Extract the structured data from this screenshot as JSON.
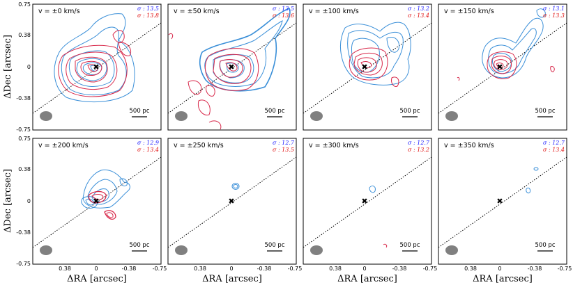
{
  "chart_data": {
    "type": "contour",
    "xlabel": "ΔRA [arcsec]",
    "ylabel": "ΔDec [arcsec]",
    "xlim": [
      0.75,
      -0.75
    ],
    "ylim": [
      -0.75,
      0.75
    ],
    "x_ticks": [
      "0.38",
      "0",
      "-0.38",
      "-0.75"
    ],
    "y_ticks": [
      "0.75",
      "0.38",
      "0",
      "-0.38",
      "-0.75"
    ],
    "scale_bar_label": "500 pc",
    "colors": {
      "blue": "#3a8fd8",
      "red": "#d8284a",
      "sigma_blue": "#1a1aff",
      "sigma_red": "#e01010"
    },
    "panels": [
      {
        "velocity": "v = ±0 km/s",
        "sigma_blue": "σ : 13.5",
        "sigma_red": "σ : 13.8"
      },
      {
        "velocity": "v = ±50 km/s",
        "sigma_blue": "σ : 13.5",
        "sigma_red": "σ : 13.6"
      },
      {
        "velocity": "v = ±100 km/s",
        "sigma_blue": "σ : 13.2",
        "sigma_red": "σ : 13.4"
      },
      {
        "velocity": "v = ±150 km/s",
        "sigma_blue": "σ : 13.1",
        "sigma_red": "σ : 13.3"
      },
      {
        "velocity": "v = ±200 km/s",
        "sigma_blue": "σ : 12.9",
        "sigma_red": "σ : 13.4"
      },
      {
        "velocity": "v = ±250 km/s",
        "sigma_blue": "σ : 12.7",
        "sigma_red": "σ : 13.5"
      },
      {
        "velocity": "v = ±300 km/s",
        "sigma_blue": "σ : 12.7",
        "sigma_red": "σ : 13.2"
      },
      {
        "velocity": "v = ±350 km/s",
        "sigma_blue": "σ : 12.7",
        "sigma_red": "σ : 13.4"
      }
    ]
  }
}
